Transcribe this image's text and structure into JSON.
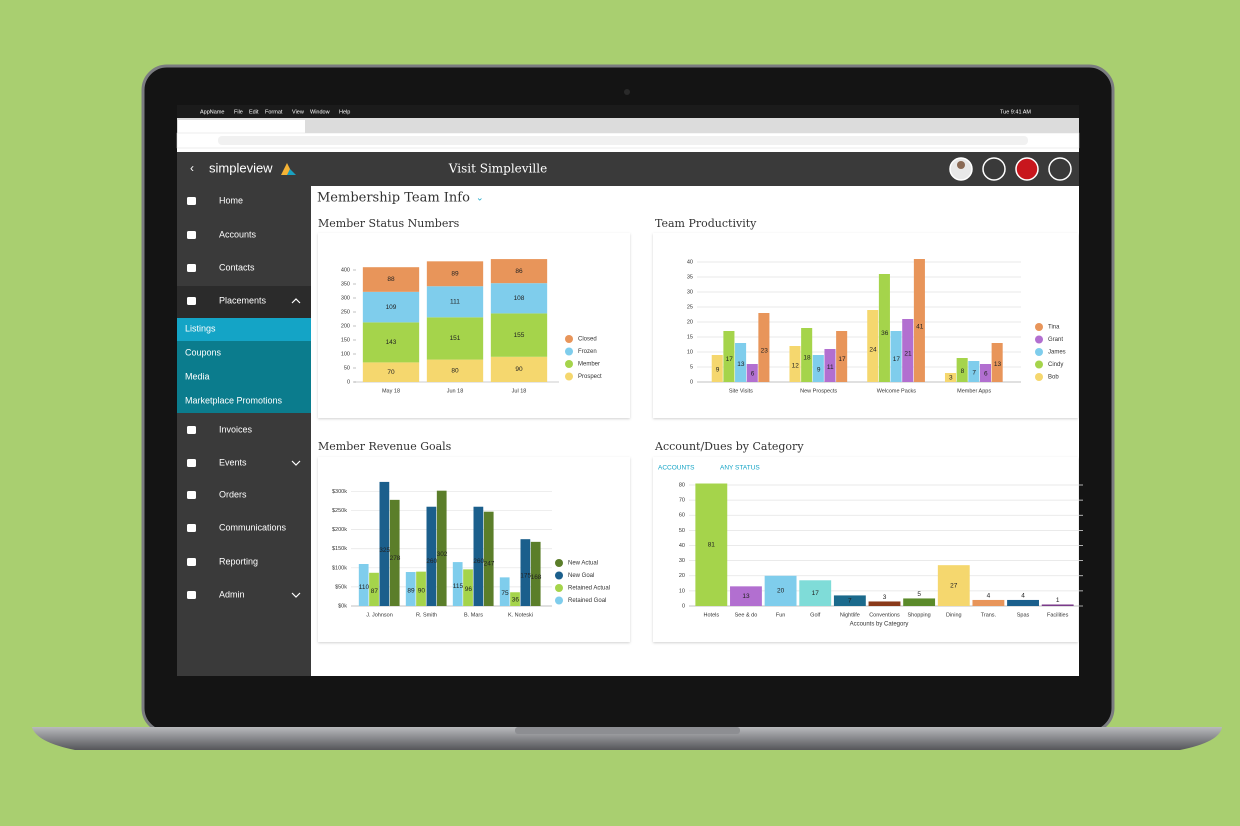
{
  "menubar": {
    "items": [
      "AppName",
      "File",
      "Edit",
      "Format",
      "View",
      "Window",
      "Help"
    ],
    "clock": "Tue 9:41 AM"
  },
  "header": {
    "brand": "simpleview",
    "title": "Visit Simpleville"
  },
  "nav": [
    "Home",
    "Accounts",
    "Contacts",
    "Placements"
  ],
  "subnav": [
    "Listings",
    "Coupons",
    "Media",
    "Marketplace Promotions"
  ],
  "nav2": [
    "Invoices",
    "Events",
    "Orders",
    "Communications",
    "Reporting",
    "Admin"
  ],
  "page_title": "Membership Team Info",
  "filters": [
    "ACCOUNTS",
    "ANY STATUS"
  ],
  "chart_data": [
    {
      "type": "bar",
      "stacked": true,
      "title": "Member Status Numbers",
      "categories": [
        "May 18",
        "Jun 18",
        "Jul 18"
      ],
      "series": [
        {
          "name": "Closed",
          "color": "#e8955a",
          "values": [
            88,
            89,
            86
          ]
        },
        {
          "name": "Frozen",
          "color": "#7fcdec",
          "values": [
            109,
            111,
            108
          ]
        },
        {
          "name": "Member",
          "color": "#a5d44b",
          "values": [
            143,
            151,
            155
          ]
        },
        {
          "name": "Prospect",
          "color": "#f5d76e",
          "values": [
            70,
            80,
            90
          ]
        }
      ],
      "ylim": [
        0,
        450
      ],
      "yticks": [
        0,
        50,
        100,
        150,
        200,
        250,
        300,
        350,
        400
      ],
      "grid": false,
      "legend": "right"
    },
    {
      "type": "bar",
      "title": "Team Productivity",
      "categories": [
        "Site Visits",
        "New Prospects",
        "Welcome Packs",
        "Member Apps"
      ],
      "series": [
        {
          "name": "Tina",
          "color": "#e8955a",
          "values": [
            23,
            17,
            41,
            13
          ]
        },
        {
          "name": "Grant",
          "color": "#b26fd0",
          "values": [
            6,
            11,
            21,
            6
          ]
        },
        {
          "name": "James",
          "color": "#7fcdec",
          "values": [
            13,
            9,
            17,
            7
          ]
        },
        {
          "name": "Cindy",
          "color": "#a5d44b",
          "values": [
            17,
            18,
            36,
            8
          ]
        },
        {
          "name": "Bob",
          "color": "#f5d76e",
          "values": [
            9,
            12,
            24,
            3
          ]
        }
      ],
      "ylim": [
        0,
        42
      ],
      "yticks": [
        0,
        5,
        10,
        15,
        20,
        25,
        30,
        35,
        40
      ],
      "grid": true,
      "legend": "right"
    },
    {
      "type": "bar",
      "title": "Member Revenue Goals",
      "categories": [
        "J. Johnson",
        "R. Smith",
        "B. Mars",
        "K. Noteski"
      ],
      "series": [
        {
          "name": "New Actual",
          "color": "#5b7e2a",
          "values": [
            278,
            302,
            247,
            168
          ]
        },
        {
          "name": "New Goal",
          "color": "#1b5f8c",
          "values": [
            325,
            260,
            260,
            175
          ]
        },
        {
          "name": "Retained Actual",
          "color": "#a5d44b",
          "values": [
            87,
            90,
            96,
            36
          ]
        },
        {
          "name": "Retained Goal",
          "color": "#7fcdec",
          "values": [
            110,
            89,
            115,
            75
          ]
        }
      ],
      "ylim": [
        0,
        330
      ],
      "yticks": [
        {
          "value": 0,
          "label": "$0k"
        },
        {
          "value": 50,
          "label": "$50k"
        },
        {
          "value": 100,
          "label": "$100k"
        },
        {
          "value": 150,
          "label": "$150k"
        },
        {
          "value": 200,
          "label": "$200k"
        },
        {
          "value": 250,
          "label": "$250k"
        },
        {
          "value": 300,
          "label": "$300k"
        }
      ],
      "grid": true,
      "legend": "right"
    },
    {
      "type": "bar",
      "title": "Account/Dues by Category",
      "x_label": "Accounts by Category",
      "categories": [
        "Hotels",
        "See & do",
        "Fun",
        "Golf",
        "Nightlife",
        "Conventions",
        "Shopping",
        "Dining",
        "Trans.",
        "Spas",
        "Facilities"
      ],
      "values": [
        81,
        13,
        20,
        17,
        7,
        3,
        5,
        27,
        4,
        4,
        1
      ],
      "colors": [
        "#a5d44b",
        "#b26fd0",
        "#7fcdec",
        "#7fdcd8",
        "#1b6a8c",
        "#8a3a1a",
        "#5b8a2a",
        "#f5d76e",
        "#e8955a",
        "#1b5f8c",
        "#7a3a8a"
      ],
      "ylim": [
        0,
        82
      ],
      "yticks": [
        0,
        10,
        20,
        30,
        40,
        50,
        60,
        70,
        80
      ],
      "grid": true
    }
  ]
}
